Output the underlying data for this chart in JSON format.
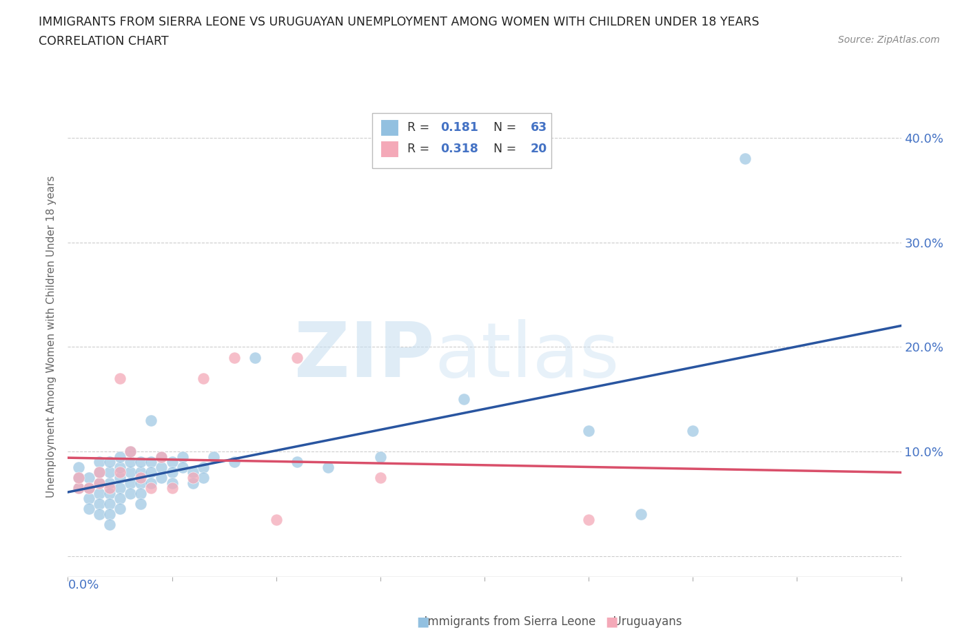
{
  "title_line1": "IMMIGRANTS FROM SIERRA LEONE VS URUGUAYAN UNEMPLOYMENT AMONG WOMEN WITH CHILDREN UNDER 18 YEARS",
  "title_line2": "CORRELATION CHART",
  "source_text": "Source: ZipAtlas.com",
  "ylabel": "Unemployment Among Women with Children Under 18 years",
  "xlim": [
    0.0,
    0.08
  ],
  "ylim": [
    -0.02,
    0.44
  ],
  "blue_color": "#92c0e0",
  "pink_color": "#f4a9b8",
  "blue_line_color": "#2955a0",
  "pink_line_color": "#d94f6a",
  "watermark_zip_color": "#c5ddf0",
  "watermark_atlas_color": "#c5ddf0",
  "right_tick_color": "#4472c4",
  "scatter_blue_x": [
    0.001,
    0.001,
    0.001,
    0.002,
    0.002,
    0.002,
    0.002,
    0.003,
    0.003,
    0.003,
    0.003,
    0.003,
    0.003,
    0.004,
    0.004,
    0.004,
    0.004,
    0.004,
    0.004,
    0.004,
    0.005,
    0.005,
    0.005,
    0.005,
    0.005,
    0.005,
    0.006,
    0.006,
    0.006,
    0.006,
    0.006,
    0.007,
    0.007,
    0.007,
    0.007,
    0.007,
    0.008,
    0.008,
    0.008,
    0.008,
    0.009,
    0.009,
    0.009,
    0.01,
    0.01,
    0.01,
    0.011,
    0.011,
    0.012,
    0.012,
    0.013,
    0.013,
    0.014,
    0.016,
    0.018,
    0.022,
    0.025,
    0.03,
    0.038,
    0.05,
    0.055,
    0.06,
    0.065
  ],
  "scatter_blue_y": [
    0.065,
    0.075,
    0.085,
    0.065,
    0.075,
    0.055,
    0.045,
    0.07,
    0.06,
    0.08,
    0.05,
    0.04,
    0.09,
    0.07,
    0.08,
    0.06,
    0.05,
    0.04,
    0.09,
    0.03,
    0.075,
    0.065,
    0.055,
    0.085,
    0.045,
    0.095,
    0.08,
    0.07,
    0.06,
    0.09,
    0.1,
    0.08,
    0.07,
    0.06,
    0.05,
    0.09,
    0.09,
    0.08,
    0.07,
    0.13,
    0.095,
    0.085,
    0.075,
    0.09,
    0.08,
    0.07,
    0.095,
    0.085,
    0.08,
    0.07,
    0.085,
    0.075,
    0.095,
    0.09,
    0.19,
    0.09,
    0.085,
    0.095,
    0.15,
    0.12,
    0.04,
    0.12,
    0.38
  ],
  "scatter_pink_x": [
    0.001,
    0.001,
    0.002,
    0.003,
    0.003,
    0.004,
    0.005,
    0.005,
    0.006,
    0.007,
    0.008,
    0.009,
    0.01,
    0.012,
    0.013,
    0.016,
    0.02,
    0.022,
    0.03,
    0.05
  ],
  "scatter_pink_y": [
    0.065,
    0.075,
    0.065,
    0.07,
    0.08,
    0.065,
    0.08,
    0.17,
    0.1,
    0.075,
    0.065,
    0.095,
    0.065,
    0.075,
    0.17,
    0.19,
    0.035,
    0.19,
    0.075,
    0.035
  ]
}
